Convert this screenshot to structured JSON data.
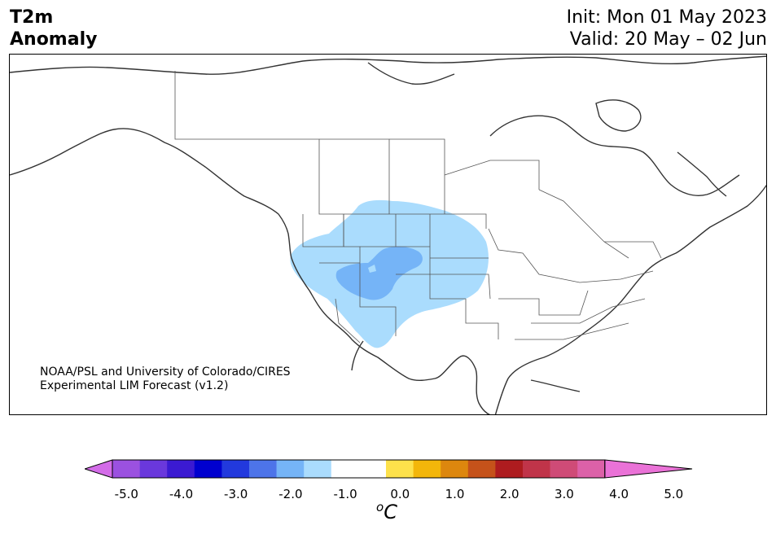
{
  "header": {
    "variable": "T2m",
    "field": "Anomaly",
    "init": "Init: Mon 01 May 2023",
    "valid": "Valid: 20 May – 02 Jun"
  },
  "credit": {
    "line1": "NOAA/PSL and University of Colorado/CIRES",
    "line2": "Experimental LIM Forecast (v1.2)"
  },
  "map": {
    "region": "North America",
    "land_color": "#ffffff",
    "coast_color": "#333333",
    "anomaly_colors": {
      "minus_1": "#aadcfd",
      "minus_1_5": "#75b4f7"
    }
  },
  "colorbar": {
    "units_base": "C",
    "units_sup": "o",
    "ticks": [
      "-5.0",
      "-4.0",
      "-3.0",
      "-2.0",
      "-1.0",
      "0.0",
      "1.0",
      "2.0",
      "3.0",
      "4.0",
      "5.0"
    ],
    "colors": [
      "#d36ce8",
      "#9b51e0",
      "#6a38dc",
      "#3b1ad2",
      "#0000cf",
      "#2239dd",
      "#4d74e9",
      "#75b4f7",
      "#aadcfd",
      "#ffffff",
      "#ffffff",
      "#fde14b",
      "#f3b60a",
      "#dd870e",
      "#c5521a",
      "#ae1c1f",
      "#c03449",
      "#cf4b77",
      "#dc61a8",
      "#ea72d7"
    ]
  }
}
